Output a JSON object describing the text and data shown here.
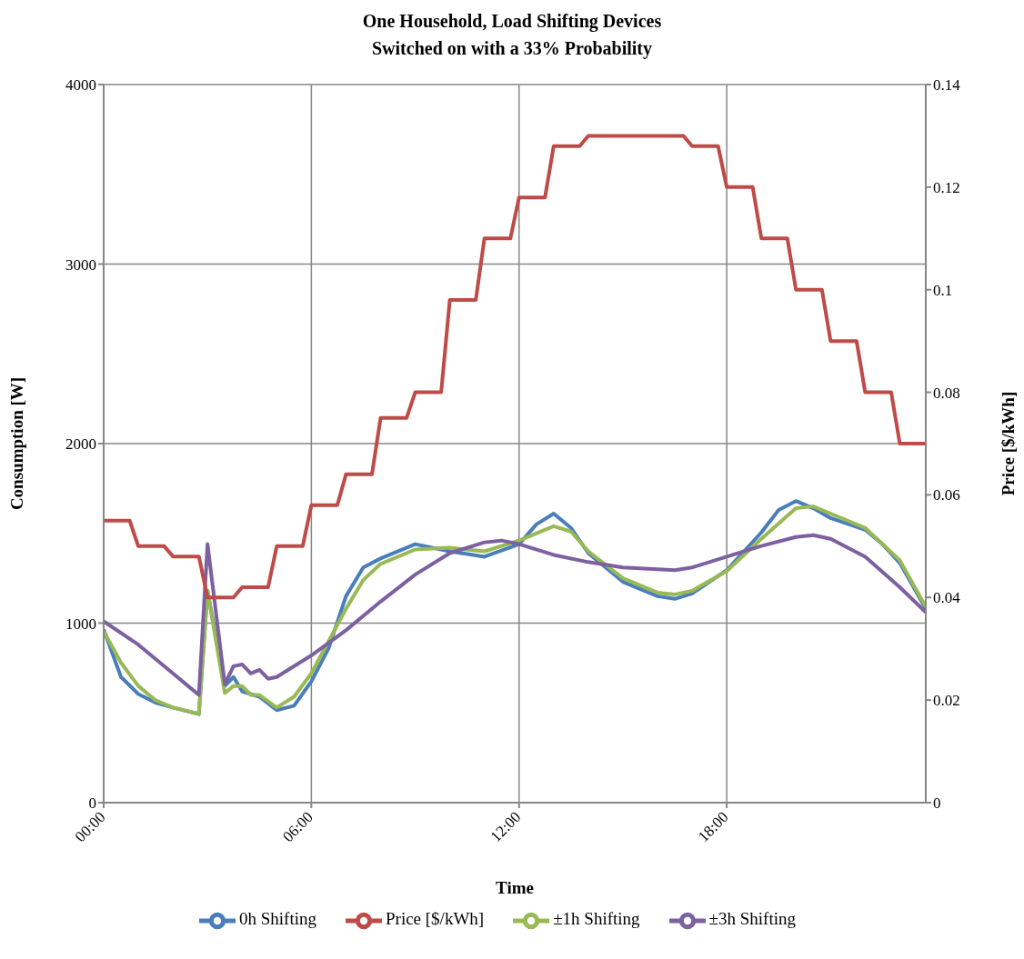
{
  "chart_data": {
    "type": "line",
    "title": "One Household, Load Shifting Devices\nSwitched on with a 33% Probability",
    "xlabel": "Time",
    "ylabel": "Consumption [W]",
    "y2label": "Price [$/kWh]",
    "xlim": [
      0,
      23.75
    ],
    "xticks": [
      {
        "value": 0,
        "label": "00:00"
      },
      {
        "value": 6,
        "label": "06:00"
      },
      {
        "value": 12,
        "label": "12:00"
      },
      {
        "value": 18,
        "label": "18:00"
      }
    ],
    "ylim": [
      0,
      4000
    ],
    "yticks": [
      0,
      1000,
      2000,
      3000,
      4000
    ],
    "y2lim": [
      0,
      0.14
    ],
    "y2ticks": [
      0,
      0.02,
      0.04,
      0.06,
      0.08,
      0.1,
      0.12,
      0.14
    ],
    "grid": true,
    "legend": "bottom",
    "marker": "none",
    "line_style": "solid",
    "series": [
      {
        "name": "0h Shifting",
        "color": "#4a7ebb",
        "x": [
          0,
          0.5,
          1,
          1.5,
          2,
          2.75,
          3,
          3.5,
          3.75,
          4,
          4.5,
          5,
          5.5,
          6,
          6.5,
          7,
          7.5,
          8,
          9,
          10,
          11,
          12,
          12.5,
          13,
          13.5,
          14,
          15,
          16,
          16.5,
          17,
          18,
          19,
          19.5,
          20,
          20.5,
          21,
          22,
          22.5,
          23,
          23.75
        ],
        "values": [
          965,
          700,
          605,
          557,
          530,
          493,
          1180,
          650,
          700,
          620,
          590,
          515,
          540,
          675,
          860,
          1150,
          1310,
          1360,
          1440,
          1400,
          1370,
          1440,
          1550,
          1610,
          1530,
          1390,
          1230,
          1150,
          1135,
          1165,
          1295,
          1505,
          1630,
          1680,
          1640,
          1585,
          1520,
          1440,
          1335,
          1080
        ]
      },
      {
        "name": "±1h Shifting",
        "color": "#98b954",
        "x": [
          0,
          0.5,
          1,
          1.5,
          2,
          2.75,
          3,
          3.5,
          3.75,
          4,
          4.25,
          4.5,
          5,
          5.5,
          6,
          6.5,
          7,
          7.5,
          8,
          9,
          10,
          11,
          12,
          13,
          13.5,
          14,
          15,
          16,
          16.5,
          17,
          18,
          19,
          20,
          20.5,
          21,
          22,
          23,
          23.75
        ],
        "values": [
          955,
          780,
          650,
          570,
          530,
          495,
          1180,
          610,
          650,
          650,
          600,
          600,
          530,
          590,
          720,
          900,
          1080,
          1240,
          1330,
          1410,
          1420,
          1400,
          1460,
          1540,
          1510,
          1400,
          1250,
          1170,
          1160,
          1180,
          1290,
          1470,
          1640,
          1650,
          1610,
          1530,
          1350,
          1090
        ]
      },
      {
        "name": "±3h Shifting",
        "color": "#7d60a0",
        "x": [
          0,
          1,
          2,
          2.5,
          2.75,
          3,
          3.5,
          3.75,
          4,
          4.25,
          4.5,
          4.75,
          5,
          6,
          7,
          8,
          9,
          10,
          11,
          11.5,
          12,
          13,
          14,
          15,
          16,
          16.5,
          17,
          18,
          19,
          20,
          20.5,
          21,
          22,
          23,
          23.75
        ],
        "values": [
          1010,
          880,
          720,
          640,
          600,
          1440,
          660,
          760,
          770,
          720,
          740,
          690,
          700,
          820,
          960,
          1120,
          1270,
          1390,
          1450,
          1460,
          1440,
          1380,
          1340,
          1310,
          1300,
          1295,
          1310,
          1370,
          1430,
          1480,
          1490,
          1470,
          1370,
          1200,
          1060
        ]
      },
      {
        "name": "Price [$/kWh]",
        "color": "#be4b48",
        "axis": "y2",
        "x": [
          0,
          0.75,
          1,
          1.75,
          2,
          2.75,
          3,
          3.75,
          4,
          4.75,
          5,
          5.75,
          6,
          6.75,
          7,
          7.75,
          8,
          8.75,
          9,
          9.75,
          10,
          10.75,
          11,
          11.75,
          12,
          12.75,
          13,
          13.75,
          14,
          16.75,
          17,
          17.75,
          18,
          18.75,
          19,
          19.75,
          20,
          20.75,
          21,
          21.75,
          22,
          22.75,
          23,
          23.75
        ],
        "values": [
          0.055,
          0.055,
          0.05,
          0.05,
          0.048,
          0.048,
          0.04,
          0.04,
          0.042,
          0.042,
          0.05,
          0.05,
          0.058,
          0.058,
          0.064,
          0.064,
          0.075,
          0.075,
          0.08,
          0.08,
          0.098,
          0.098,
          0.11,
          0.11,
          0.118,
          0.118,
          0.128,
          0.128,
          0.13,
          0.13,
          0.128,
          0.128,
          0.12,
          0.12,
          0.11,
          0.11,
          0.1,
          0.1,
          0.09,
          0.09,
          0.08,
          0.08,
          0.07,
          0.07
        ]
      }
    ]
  }
}
